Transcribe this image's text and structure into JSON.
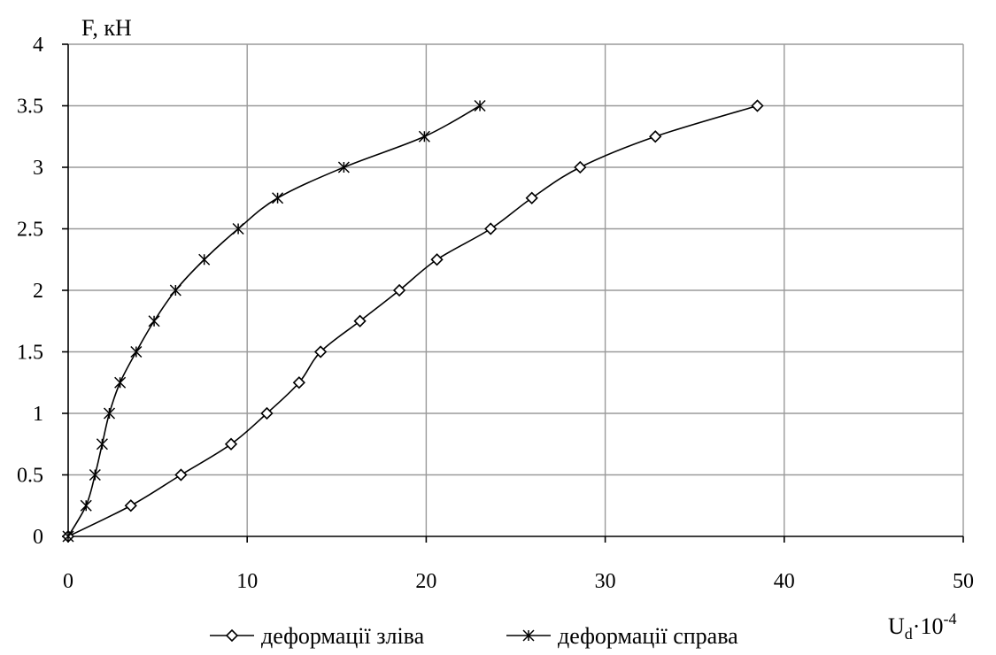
{
  "chart_data": {
    "type": "line",
    "ylabel": "F, кН",
    "xlabel_main": "U",
    "xlabel_sub": "d",
    "xlabel_mid": "·10",
    "xlabel_sup": "-4",
    "xlim": [
      0,
      50
    ],
    "ylim": [
      0,
      4
    ],
    "xticks": [
      "0",
      "10",
      "20",
      "30",
      "40",
      "50"
    ],
    "yticks": [
      "0",
      "0.5",
      "1",
      "1.5",
      "2",
      "2.5",
      "3",
      "3.5",
      "4"
    ],
    "grid": true,
    "legend_position": "bottom",
    "series": [
      {
        "name": "деформації зліва",
        "marker": "diamond",
        "points": [
          [
            0,
            0
          ],
          [
            3.5,
            0.25
          ],
          [
            6.3,
            0.5
          ],
          [
            9.1,
            0.75
          ],
          [
            11.1,
            1.0
          ],
          [
            12.9,
            1.25
          ],
          [
            14.1,
            1.5
          ],
          [
            16.3,
            1.75
          ],
          [
            18.5,
            2.0
          ],
          [
            20.6,
            2.25
          ],
          [
            23.6,
            2.5
          ],
          [
            25.9,
            2.75
          ],
          [
            28.6,
            3.0
          ],
          [
            32.8,
            3.25
          ],
          [
            38.5,
            3.5
          ]
        ]
      },
      {
        "name": "деформації справа",
        "marker": "asterisk",
        "points": [
          [
            0,
            0
          ],
          [
            1.0,
            0.25
          ],
          [
            1.5,
            0.5
          ],
          [
            1.9,
            0.75
          ],
          [
            2.3,
            1.0
          ],
          [
            2.9,
            1.25
          ],
          [
            3.8,
            1.5
          ],
          [
            4.8,
            1.75
          ],
          [
            6.0,
            2.0
          ],
          [
            7.6,
            2.25
          ],
          [
            9.5,
            2.5
          ],
          [
            11.7,
            2.75
          ],
          [
            15.4,
            3.0
          ],
          [
            19.9,
            3.25
          ],
          [
            23.0,
            3.5
          ]
        ]
      }
    ]
  }
}
